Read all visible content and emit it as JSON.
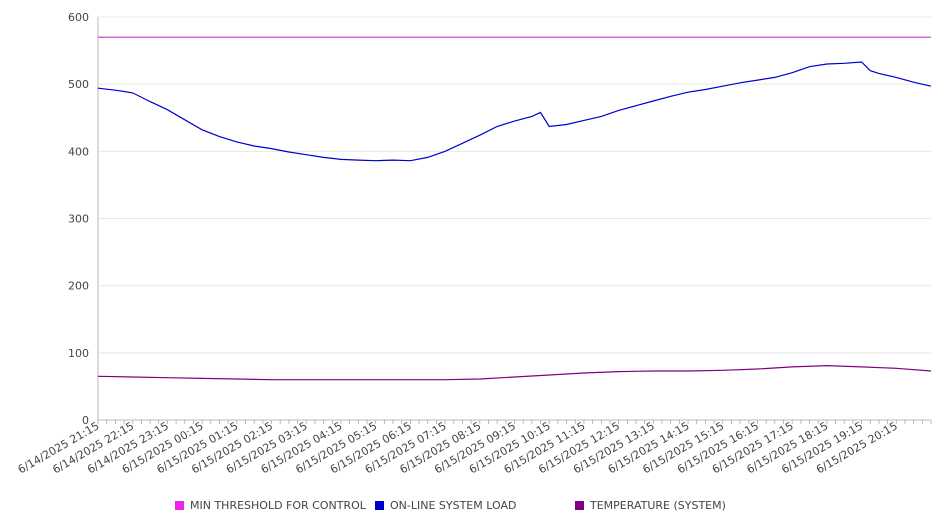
{
  "chart_data": {
    "type": "line",
    "ylim": [
      0,
      600
    ],
    "yticks": [
      0,
      100,
      200,
      300,
      400,
      500,
      600
    ],
    "xlim": [
      "6/14/2025 21:15",
      "6/15/2025 21:15"
    ],
    "xtick_labels": [
      "6/14/2025 21:15",
      "6/14/2025 22:15",
      "6/14/2025 23:15",
      "6/15/2025 00:15",
      "6/15/2025 01:15",
      "6/15/2025 02:15",
      "6/15/2025 03:15",
      "6/15/2025 04:15",
      "6/15/2025 05:15",
      "6/15/2025 06:15",
      "6/15/2025 07:15",
      "6/15/2025 08:15",
      "6/15/2025 09:15",
      "6/15/2025 10:15",
      "6/15/2025 11:15",
      "6/15/2025 12:15",
      "6/15/2025 13:15",
      "6/15/2025 14:15",
      "6/15/2025 15:15",
      "6/15/2025 16:15",
      "6/15/2025 17:15",
      "6/15/2025 18:15",
      "6/15/2025 19:15",
      "6/15/2025 20:15"
    ],
    "grid": "horizontal",
    "legend_position": "bottom",
    "series": [
      {
        "name": "MIN THRESHOLD FOR CONTROL",
        "color": "#cc33cc",
        "points": [
          [
            "6/14/2025 21:15",
            570
          ],
          [
            "6/15/2025 21:15",
            570
          ]
        ]
      },
      {
        "name": "ON-LINE SYSTEM LOAD",
        "color": "#0000cc",
        "points": [
          [
            "6/14/2025 21:15",
            494
          ],
          [
            "6/14/2025 21:45",
            491
          ],
          [
            "6/14/2025 22:15",
            487
          ],
          [
            "6/14/2025 22:45",
            474
          ],
          [
            "6/14/2025 23:15",
            462
          ],
          [
            "6/14/2025 23:45",
            447
          ],
          [
            "6/15/2025 00:15",
            432
          ],
          [
            "6/15/2025 00:45",
            422
          ],
          [
            "6/15/2025 01:15",
            414
          ],
          [
            "6/15/2025 01:45",
            408
          ],
          [
            "6/15/2025 02:15",
            404
          ],
          [
            "6/15/2025 02:45",
            399
          ],
          [
            "6/15/2025 03:15",
            395
          ],
          [
            "6/15/2025 03:45",
            391
          ],
          [
            "6/15/2025 04:15",
            388
          ],
          [
            "6/15/2025 04:45",
            387
          ],
          [
            "6/15/2025 05:15",
            386
          ],
          [
            "6/15/2025 05:45",
            387
          ],
          [
            "6/15/2025 06:15",
            386
          ],
          [
            "6/15/2025 06:45",
            391
          ],
          [
            "6/15/2025 07:15",
            400
          ],
          [
            "6/15/2025 07:45",
            412
          ],
          [
            "6/15/2025 08:15",
            424
          ],
          [
            "6/15/2025 08:45",
            437
          ],
          [
            "6/15/2025 09:15",
            445
          ],
          [
            "6/15/2025 09:45",
            452
          ],
          [
            "6/15/2025 10:00",
            458
          ],
          [
            "6/15/2025 10:15",
            437
          ],
          [
            "6/15/2025 10:45",
            440
          ],
          [
            "6/15/2025 11:15",
            446
          ],
          [
            "6/15/2025 11:45",
            452
          ],
          [
            "6/15/2025 12:15",
            461
          ],
          [
            "6/15/2025 12:45",
            468
          ],
          [
            "6/15/2025 13:15",
            475
          ],
          [
            "6/15/2025 13:45",
            482
          ],
          [
            "6/15/2025 14:15",
            488
          ],
          [
            "6/15/2025 14:45",
            492
          ],
          [
            "6/15/2025 15:15",
            497
          ],
          [
            "6/15/2025 15:45",
            502
          ],
          [
            "6/15/2025 16:15",
            506
          ],
          [
            "6/15/2025 16:45",
            510
          ],
          [
            "6/15/2025 17:15",
            517
          ],
          [
            "6/15/2025 17:45",
            526
          ],
          [
            "6/15/2025 18:15",
            530
          ],
          [
            "6/15/2025 18:45",
            531
          ],
          [
            "6/15/2025 19:15",
            533
          ],
          [
            "6/15/2025 19:30",
            520
          ],
          [
            "6/15/2025 19:45",
            516
          ],
          [
            "6/15/2025 20:15",
            510
          ],
          [
            "6/15/2025 20:45",
            503
          ],
          [
            "6/15/2025 21:15",
            497
          ]
        ]
      },
      {
        "name": "TEMPERATURE (SYSTEM)",
        "color": "#800080",
        "points": [
          [
            "6/14/2025 21:15",
            65
          ],
          [
            "6/14/2025 22:15",
            64
          ],
          [
            "6/14/2025 23:15",
            63
          ],
          [
            "6/15/2025 00:15",
            62
          ],
          [
            "6/15/2025 01:15",
            61
          ],
          [
            "6/15/2025 02:15",
            60
          ],
          [
            "6/15/2025 03:15",
            60
          ],
          [
            "6/15/2025 04:15",
            60
          ],
          [
            "6/15/2025 05:15",
            60
          ],
          [
            "6/15/2025 06:15",
            60
          ],
          [
            "6/15/2025 07:15",
            60
          ],
          [
            "6/15/2025 08:15",
            61
          ],
          [
            "6/15/2025 09:15",
            64
          ],
          [
            "6/15/2025 10:15",
            67
          ],
          [
            "6/15/2025 11:15",
            70
          ],
          [
            "6/15/2025 12:15",
            72
          ],
          [
            "6/15/2025 13:15",
            73
          ],
          [
            "6/15/2025 14:15",
            73
          ],
          [
            "6/15/2025 15:15",
            74
          ],
          [
            "6/15/2025 16:15",
            76
          ],
          [
            "6/15/2025 17:15",
            79
          ],
          [
            "6/15/2025 18:15",
            81
          ],
          [
            "6/15/2025 19:15",
            79
          ],
          [
            "6/15/2025 20:15",
            77
          ],
          [
            "6/15/2025 21:15",
            73
          ]
        ]
      }
    ]
  }
}
